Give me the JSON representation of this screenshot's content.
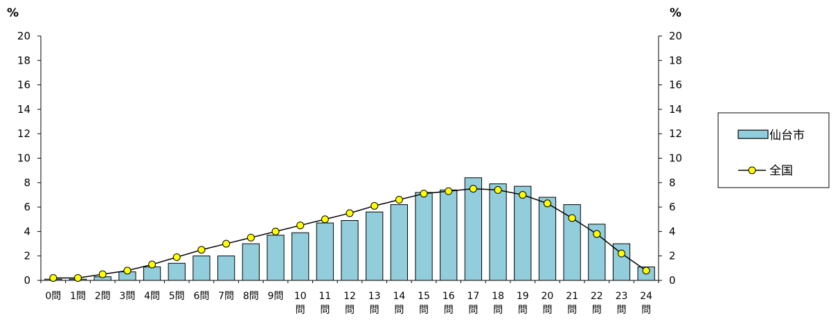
{
  "chart_data": {
    "type": "bar",
    "title": "",
    "unit_left": "%",
    "unit_right": "%",
    "categories": [
      "0問",
      "1問",
      "2問",
      "3問",
      "4問",
      "5問",
      "6問",
      "7問",
      "8問",
      "9問",
      "10問",
      "11問",
      "12問",
      "13問",
      "14問",
      "15問",
      "16問",
      "17問",
      "18問",
      "19問",
      "20問",
      "21問",
      "22問",
      "23問",
      "24問"
    ],
    "ylim": [
      0,
      20
    ],
    "yticks": [
      0,
      2,
      4,
      6,
      8,
      10,
      12,
      14,
      16,
      18,
      20
    ],
    "grid": false,
    "legend_position": "right",
    "series": [
      {
        "name": "仙台市",
        "type": "bar",
        "color": "#92CDDC",
        "values": [
          0.1,
          0.1,
          0.3,
          0.7,
          1.1,
          1.4,
          2.0,
          2.0,
          3.0,
          3.7,
          3.9,
          4.7,
          4.9,
          5.6,
          6.2,
          7.2,
          7.4,
          8.4,
          7.9,
          7.7,
          6.8,
          6.2,
          4.6,
          3.0,
          1.1
        ]
      },
      {
        "name": "全国",
        "type": "line",
        "color": "#FFFF00",
        "values": [
          0.2,
          0.2,
          0.5,
          0.8,
          1.3,
          1.9,
          2.5,
          3.0,
          3.5,
          4.0,
          4.5,
          5.0,
          5.5,
          6.1,
          6.6,
          7.1,
          7.3,
          7.5,
          7.4,
          7.0,
          6.3,
          5.1,
          3.8,
          2.2,
          0.8
        ]
      }
    ]
  }
}
